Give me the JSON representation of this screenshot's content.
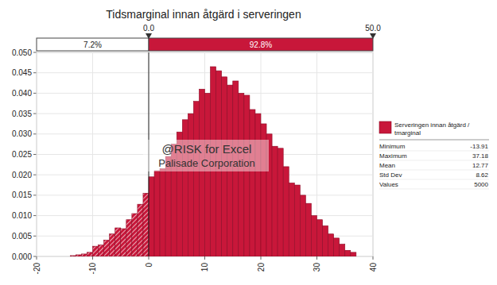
{
  "chart_data": {
    "type": "histogram",
    "title": "Tidsmarginal innan åtgärd i serveringen",
    "bins": [
      -14,
      -13,
      -12,
      -11,
      -10,
      -9,
      -8,
      -7,
      -6,
      -5,
      -4,
      -3,
      -2,
      -1,
      0,
      1,
      2,
      3,
      4,
      5,
      6,
      7,
      8,
      9,
      10,
      11,
      12,
      13,
      14,
      15,
      16,
      17,
      18,
      19,
      20,
      21,
      22,
      23,
      24,
      25,
      26,
      27,
      28,
      29,
      30,
      31,
      32,
      33,
      34,
      35,
      36,
      37
    ],
    "series": [
      {
        "name": "Serveringen innan åtgärd / tmarginal",
        "color": "#c8173a",
        "values": [
          0.0002,
          0.0004,
          0.0006,
          0.001,
          0.0025,
          0.0028,
          0.004,
          0.0055,
          0.007,
          0.0068,
          0.009,
          0.0105,
          0.0128,
          0.0155,
          0.0195,
          0.021,
          0.0215,
          0.0245,
          0.0275,
          0.0305,
          0.0335,
          0.035,
          0.038,
          0.041,
          0.04,
          0.0465,
          0.0455,
          0.044,
          0.042,
          0.043,
          0.04,
          0.0395,
          0.036,
          0.035,
          0.0325,
          0.03,
          0.027,
          0.0265,
          0.022,
          0.018,
          0.0175,
          0.015,
          0.013,
          0.01,
          0.009,
          0.0075,
          0.0055,
          0.0045,
          0.003,
          0.0015,
          0.001
        ]
      }
    ],
    "xlim": [
      -20,
      40
    ],
    "xticks": [
      -20,
      -10,
      0,
      10,
      20,
      30,
      40
    ],
    "ylim": [
      0,
      0.05
    ],
    "yticks": [
      {
        "value": 0,
        "label": "0.000"
      },
      {
        "value": 0.005,
        "label": "0.005"
      },
      {
        "value": 0.01,
        "label": "0.010"
      },
      {
        "value": 0.015,
        "label": "0.015"
      },
      {
        "value": 0.02,
        "label": "0.020"
      },
      {
        "value": 0.025,
        "label": "0.025"
      },
      {
        "value": 0.03,
        "label": "0.030"
      },
      {
        "value": 0.035,
        "label": "0.035"
      },
      {
        "value": 0.04,
        "label": "0.040"
      },
      {
        "value": 0.045,
        "label": "0.045"
      },
      {
        "value": 0.05,
        "label": "0.050"
      }
    ],
    "grid": true,
    "legend": "right",
    "delimiters": [
      {
        "value": 0,
        "label": "0.0"
      },
      {
        "value": 50,
        "label": "50.0"
      }
    ],
    "delimiter_percentages": [
      {
        "value": 7.2,
        "label": "7.2%"
      },
      {
        "value": 92.8,
        "label": "92.8%"
      }
    ],
    "statistics": [
      {
        "label": "Minimum",
        "value": -13.91
      },
      {
        "label": "Maximum",
        "value": 37.18
      },
      {
        "label": "Mean",
        "value": 12.77
      },
      {
        "label": "Std Dev",
        "value": 8.62
      },
      {
        "label": "Values",
        "value": 5000
      }
    ],
    "watermark": [
      "@RISK for Excel",
      "Palisade Corporation"
    ]
  }
}
